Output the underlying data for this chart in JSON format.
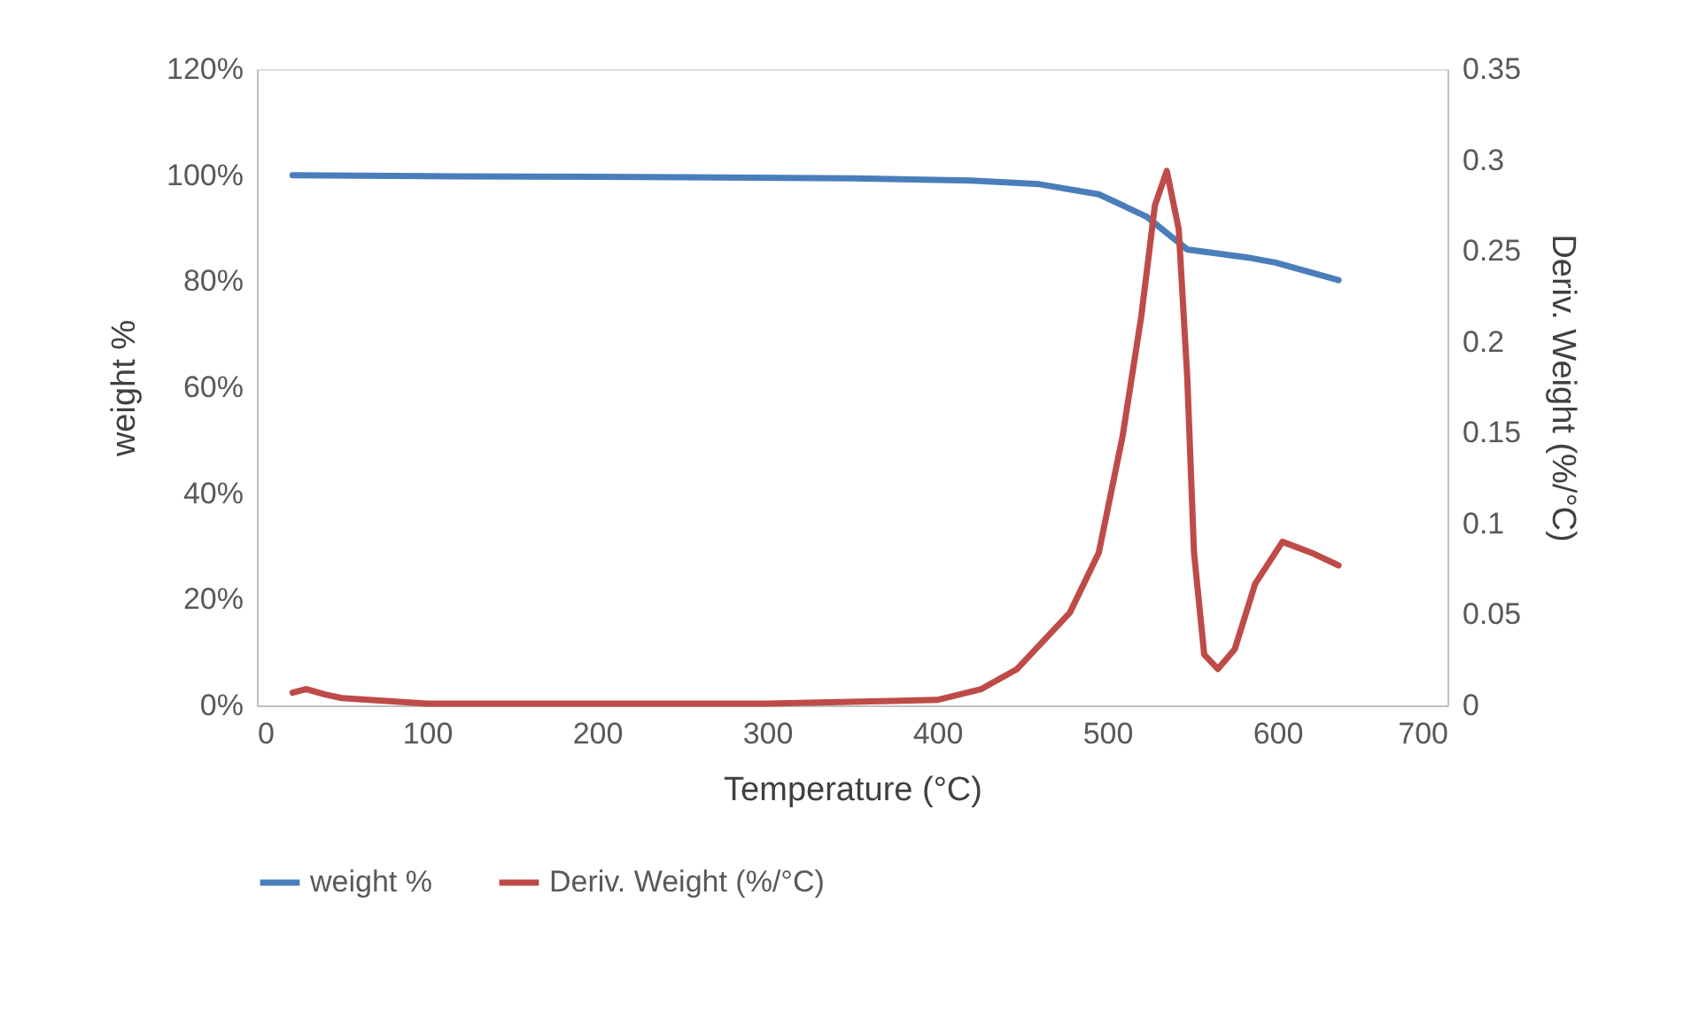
{
  "chart_data": {
    "type": "line",
    "xlabel": "Temperature (°C)",
    "ylabel": "weight %",
    "y2label": "Deriv. Weight (%/°C)",
    "xlim": [
      0,
      700
    ],
    "xticks": [
      0,
      100,
      200,
      300,
      400,
      500,
      600,
      700
    ],
    "ylim": [
      0,
      120
    ],
    "yticks": [
      {
        "value": 0,
        "label": "0%"
      },
      {
        "value": 20,
        "label": "20%"
      },
      {
        "value": 40,
        "label": "40%"
      },
      {
        "value": 60,
        "label": "60%"
      },
      {
        "value": 80,
        "label": "80%"
      },
      {
        "value": 100,
        "label": "100%"
      },
      {
        "value": 120,
        "label": "120%"
      }
    ],
    "y2lim": [
      0,
      0.35
    ],
    "y2ticks": [
      0,
      0.05,
      0.1,
      0.15,
      0.2,
      0.25,
      0.3,
      0.35
    ],
    "grid": false,
    "legend": "bottom",
    "marker": "none",
    "line_style": "solid",
    "series": [
      {
        "name": "weight %",
        "color": "#4a7ebb",
        "x": [
          21,
          100,
          200,
          252,
          350,
          420,
          460,
          495,
          523,
          547,
          582,
          599,
          636
        ],
        "values": [
          100,
          99.8,
          99.7,
          99.6,
          99.4,
          99,
          98.3,
          96.4,
          92.2,
          86,
          84.5,
          83.5,
          80.2
        ]
      },
      {
        "name": "Deriv. Weight (%/°C)",
        "color": "#be4b48",
        "axis": "y2",
        "x": [
          21,
          29,
          40,
          50,
          100,
          200,
          300,
          400,
          426,
          447,
          478,
          495,
          509,
          520,
          528,
          535,
          542,
          547,
          551,
          557,
          565,
          575,
          587,
          603,
          620,
          636
        ],
        "values": [
          0.007,
          0.009,
          0.006,
          0.004,
          0.001,
          0.001,
          0.001,
          0.003,
          0.009,
          0.02,
          0.051,
          0.084,
          0.148,
          0.214,
          0.275,
          0.294,
          0.262,
          0.181,
          0.084,
          0.028,
          0.02,
          0.031,
          0.067,
          0.09,
          0.084,
          0.077
        ]
      }
    ]
  }
}
